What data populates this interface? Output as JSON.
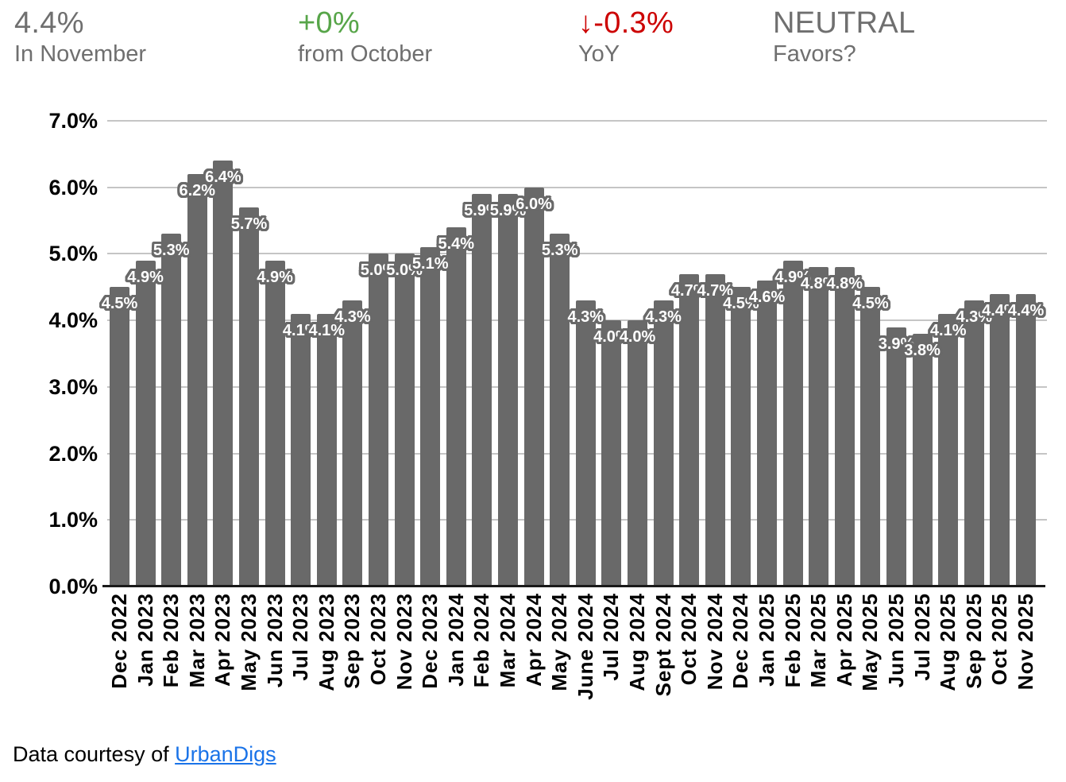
{
  "header": {
    "stats": [
      {
        "value": "4.4%",
        "label": "In November",
        "color": "#6f6f6f"
      },
      {
        "value": "+0%",
        "label": "from October",
        "color": "#57a549"
      },
      {
        "value": "↓-0.3%",
        "label": "YoY",
        "color": "#cc0000"
      },
      {
        "value": "NEUTRAL",
        "label": "Favors?",
        "color": "#6f6f6f"
      }
    ]
  },
  "chart_data": {
    "type": "bar",
    "title": "",
    "categories": [
      "Dec 2022",
      "Jan 2023",
      "Feb 2023",
      "Mar 2023",
      "Apr 2023",
      "May 2023",
      "Jun 2023",
      "Jul 2023",
      "Aug 2023",
      "Sep 2023",
      "Oct 2023",
      "Nov 2023",
      "Dec 2023",
      "Jan 2024",
      "Feb 2024",
      "Mar 2024",
      "Apr 2024",
      "May 2024",
      "June 2024",
      "Jul 2024",
      "Aug 2024",
      "Sept 2024",
      "Oct 2024",
      "Nov 2024",
      "Dec 2024",
      "Jan 2025",
      "Feb 2025",
      "Mar 2025",
      "Apr 2025",
      "May 2025",
      "Jun 2025",
      "Jul 2025",
      "Aug 2025",
      "Sep 2025",
      "Oct 2025",
      "Nov 2025"
    ],
    "values": [
      4.5,
      4.9,
      5.3,
      6.2,
      6.4,
      5.7,
      4.9,
      4.1,
      4.1,
      4.3,
      5.0,
      5.0,
      5.1,
      5.4,
      5.9,
      5.9,
      6.0,
      5.3,
      4.3,
      4.0,
      4.0,
      4.3,
      4.7,
      4.7,
      4.5,
      4.6,
      4.9,
      4.8,
      4.8,
      4.5,
      3.9,
      3.8,
      4.1,
      4.3,
      4.4,
      4.4
    ],
    "bar_labels": [
      "4.5%",
      "4.9%",
      "5.3%",
      "6.2%",
      "6.4%",
      "5.7%",
      "4.9%",
      "4.1%",
      "4.1%",
      "4.3%",
      "5.0%",
      "5.0%",
      "5.1%",
      "5.4%",
      "5.9%",
      "5.9%",
      "6.0%",
      "5.3%",
      "4.3%",
      "4.0%",
      "4.0%",
      "4.3%",
      "4.7%",
      "4.7%",
      "4.5%",
      "4.6%",
      "4.9%",
      "4.8%",
      "4.8%",
      "4.5%",
      "3.9%",
      "3.8%",
      "4.1%",
      "4.3%",
      "4.4%",
      "4.4%"
    ],
    "xlabel": "",
    "ylabel": "",
    "ylim": [
      0,
      7
    ],
    "ytick_labels": [
      "0.0%",
      "1.0%",
      "2.0%",
      "3.0%",
      "4.0%",
      "5.0%",
      "6.0%",
      "7.0%"
    ],
    "grid": true,
    "legend": false,
    "xtick_rotation": 90,
    "bar_color": "#696969",
    "bar_label_fill": "#ffffff",
    "bar_label_outline": "#696969",
    "gridline_color": "#c5c5c5",
    "axis_line_color": "#1a1a1a"
  },
  "footer": {
    "prefix": "Data courtesy of ",
    "link_text": "UrbanDigs",
    "link_color": "#1a73e8"
  }
}
